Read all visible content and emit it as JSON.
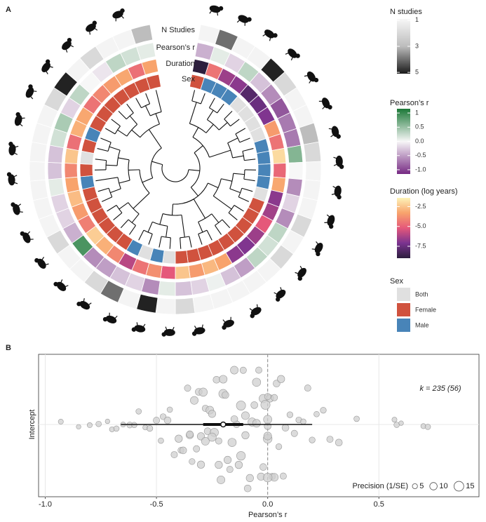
{
  "chart_data": [
    {
      "type": "circular-heatmap",
      "panel": "A",
      "rings": [
        {
          "name": "N Studies",
          "values": [
            1,
            4,
            1,
            1,
            5,
            2,
            1,
            1,
            3,
            2,
            1,
            1,
            1,
            2,
            1,
            2,
            1,
            1,
            1,
            1,
            1,
            2,
            1,
            5,
            1,
            4,
            2,
            1,
            1,
            2,
            1,
            1,
            1,
            1,
            1,
            1,
            1,
            2,
            5,
            1,
            2,
            1,
            1,
            3
          ],
          "scale": {
            "title": "N studies",
            "colors": [
              "#f7f7f7",
              "#bdbdbd",
              "#1a1a1a"
            ],
            "lim": [
              0.9,
              5.1
            ],
            "ticks": [
              1,
              3,
              5
            ],
            "reverse_axis": true
          }
        },
        {
          "name": "Pearson’s r",
          "values": [
            -0.4,
            0.1,
            -0.2,
            0.3,
            -0.3,
            -0.6,
            -0.9,
            -0.7,
            -0.7,
            0.6,
            0,
            -0.6,
            -0.2,
            -0.6,
            0.3,
            0.2,
            0.3,
            -0.5,
            -0.3,
            0.05,
            -0.2,
            -0.3,
            0.1,
            -0.6,
            -0.2,
            -0.3,
            -0.5,
            -0.6,
            0.9,
            -0.4,
            -0.2,
            -0.2,
            0.1,
            -0.3,
            -0.3,
            0.2,
            0.4,
            -0.2,
            0.3,
            0,
            -0.1,
            0.3,
            0.2,
            0.1
          ],
          "scale": {
            "title": "Pearson’s r",
            "colors": [
              "#762a83",
              "#f7f7f7",
              "#1b7837"
            ],
            "lim": [
              -1.15,
              1.15
            ],
            "ticks": [
              1,
              0.5,
              {
                "value": 0,
                "label": "0.0"
              },
              -0.5,
              {
                "value": -1,
                "label": "-1.0"
              }
            ],
            "reverse_axis": false
          }
        },
        {
          "name": "Duration",
          "values": [
            -9,
            -4.5,
            -6.5,
            -6.8,
            -8,
            -7.5,
            -7,
            -3.5,
            -4.5,
            -2,
            -4.8,
            -3.2,
            -6.8,
            -6.4,
            -5.2,
            -6.5,
            -7,
            -6.8,
            -3.3,
            -2.8,
            -3.5,
            -2.5,
            -5.2,
            -3.8,
            -4.5,
            -6,
            -4,
            -3,
            -2.3,
            -4.2,
            -3.5,
            -2.7,
            -3.3,
            -4,
            -2.5,
            -4.6,
            -3,
            -3.2,
            -4.5,
            -4,
            -3.5,
            -3.2,
            -4.6,
            -3.3
          ],
          "scale": {
            "title": "Duration (log years)",
            "colors": [
              "#2c1e3d",
              "#7a3390",
              "#e5587a",
              "#f8a36c",
              "#fdf3b8"
            ],
            "lim": [
              -9,
              -1.4
            ],
            "ticks": [
              -2.5,
              {
                "value": -5,
                "label": "-5.0"
              },
              -7.5
            ],
            "reverse_axis": false
          }
        },
        {
          "name": "Sex",
          "values": [
            "Female",
            "Male",
            "Male",
            "Male",
            "Both",
            "Both",
            "Both",
            "Both",
            "Male",
            "Male",
            "Male",
            "Male",
            "Both",
            "Female",
            "Female",
            "Female",
            "Female",
            "Female",
            "Female",
            "Female",
            "Female",
            "Female",
            "Both",
            "Male",
            "Both",
            "Male",
            "Female",
            "Female",
            "Female",
            "Female",
            "Female",
            "Female",
            "Male",
            "Female",
            "Both",
            "Female",
            "Male",
            "Female",
            "Female",
            "Female",
            "Female",
            "Female",
            "Female",
            "Female"
          ],
          "scale": {
            "title": "Sex",
            "categories": [
              "Both",
              "Female",
              "Male"
            ],
            "colors": [
              "#e0e0e0",
              "#d0523e",
              "#4884b8"
            ]
          }
        }
      ]
    },
    {
      "type": "orchard",
      "panel": "B",
      "xlabel": "Pearson’s r",
      "categories": [
        "Intercept"
      ],
      "xlim": [
        -1.03,
        0.95
      ],
      "xticks": [
        {
          "value": -1,
          "label": "-1.0"
        },
        -0.5,
        {
          "value": 0,
          "label": "0.0"
        },
        0.5
      ],
      "grid": true,
      "reference_line": 0,
      "x": [
        -0.93,
        -0.85,
        -0.8,
        -0.76,
        -0.72,
        -0.7,
        -0.68,
        -0.65,
        -0.62,
        -0.6,
        -0.58,
        -0.55,
        -0.53,
        -0.5,
        -0.48,
        -0.47,
        -0.45,
        -0.44,
        -0.42,
        -0.4,
        -0.39,
        -0.38,
        -0.36,
        -0.35,
        -0.34,
        -0.33,
        -0.32,
        -0.31,
        -0.3,
        -0.29,
        -0.28,
        -0.27,
        -0.26,
        -0.25,
        -0.24,
        -0.23,
        -0.22,
        -0.21,
        -0.2,
        -0.19,
        -0.18,
        -0.17,
        -0.16,
        -0.15,
        -0.14,
        -0.13,
        -0.12,
        -0.11,
        -0.1,
        -0.09,
        -0.08,
        -0.07,
        -0.06,
        -0.05,
        -0.04,
        -0.03,
        -0.02,
        -0.01,
        0,
        0,
        0,
        0.01,
        0.02,
        0.03,
        0.04,
        0.05,
        0.06,
        0.07,
        0.08,
        0.1,
        0.12,
        0.14,
        0.16,
        0.18,
        0.2,
        0.22,
        0.25,
        0.28,
        0.32,
        0.4,
        0.57,
        0.58,
        0.6,
        0.7,
        0.72,
        -0.3,
        -0.25,
        -0.2,
        -0.15,
        -0.1,
        -0.05,
        0,
        0,
        -0.35,
        -0.28,
        -0.22,
        -0.12,
        -0.02,
        0,
        0.03
      ],
      "precision": [
        5,
        4,
        5,
        6,
        4,
        5,
        6,
        5,
        7,
        6,
        6,
        5,
        7,
        8,
        6,
        7,
        9,
        6,
        8,
        10,
        7,
        9,
        8,
        10,
        7,
        11,
        8,
        9,
        10,
        12,
        8,
        9,
        11,
        10,
        12,
        9,
        8,
        11,
        13,
        9,
        10,
        8,
        12,
        11,
        9,
        10,
        13,
        8,
        11,
        9,
        10,
        12,
        9,
        11,
        8,
        10,
        12,
        14,
        13,
        11,
        9,
        10,
        8,
        11,
        9,
        7,
        10,
        8,
        9,
        7,
        8,
        7,
        6,
        8,
        7,
        6,
        7,
        8,
        9,
        6,
        5,
        6,
        4,
        5,
        6,
        10,
        12,
        11,
        9,
        10,
        12,
        8,
        13,
        9,
        11,
        10,
        14,
        9,
        12,
        8
      ],
      "point_color": "#cfcfcf",
      "estimate": -0.2,
      "ci": [
        -0.29,
        -0.11
      ],
      "pi": [
        -0.66,
        0.2
      ],
      "annotation": "k = 235 (56)",
      "size_legend": {
        "title": "Precision (1/SE)",
        "values": [
          5,
          10,
          15
        ]
      }
    }
  ]
}
